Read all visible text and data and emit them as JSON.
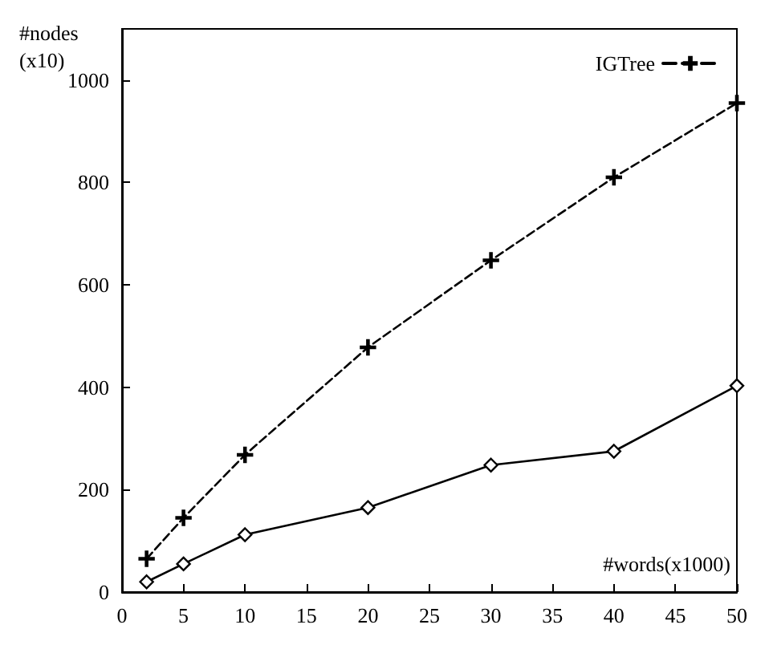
{
  "chart_data": {
    "type": "line",
    "xlabel": "#words(x1000)",
    "ylabel": "#nodes\n(x10)",
    "x": [
      2,
      5,
      10,
      20,
      30,
      40,
      50
    ],
    "series": [
      {
        "color": "#000000",
        "marker": "diamond",
        "line_style": "solid",
        "values": [
          20,
          55,
          112,
          165,
          248,
          275,
          403
        ]
      },
      {
        "name": "IGTree",
        "color": "#000000",
        "marker": "cross",
        "line_style": "dashed",
        "values": [
          65,
          145,
          268,
          478,
          648,
          810,
          955
        ]
      }
    ],
    "xlim": [
      0,
      50
    ],
    "xticks": [
      0,
      5,
      10,
      15,
      20,
      25,
      30,
      35,
      40,
      45,
      50
    ],
    "ylim": [
      0,
      1100
    ],
    "yticks": [
      0,
      200,
      400,
      600,
      800,
      1000
    ],
    "grid": false,
    "legend": "top right"
  }
}
